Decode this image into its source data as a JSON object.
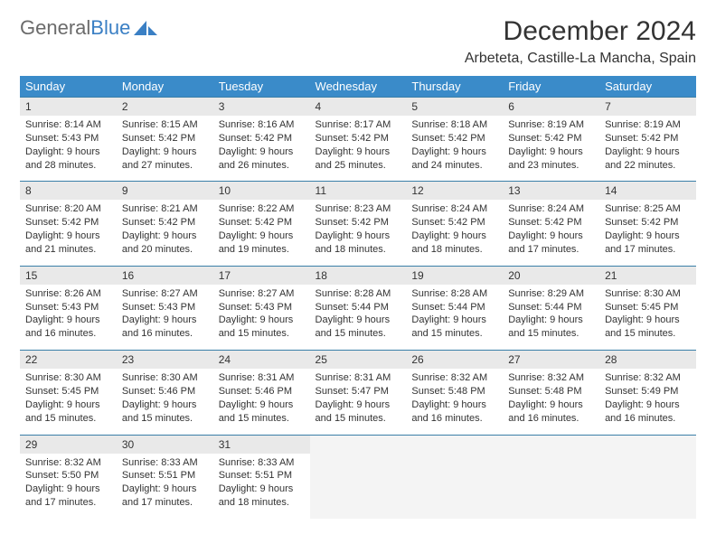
{
  "brand": {
    "part1": "General",
    "part2": "Blue"
  },
  "title": "December 2024",
  "location": "Arbeteta, Castille-La Mancha, Spain",
  "colors": {
    "header_bg": "#3a8bc9",
    "header_text": "#ffffff",
    "daynum_bg": "#e9e9e9",
    "border": "#3a7fa8",
    "brand_gray": "#6b6b6b",
    "brand_blue": "#3a7fc4"
  },
  "dow": [
    "Sunday",
    "Monday",
    "Tuesday",
    "Wednesday",
    "Thursday",
    "Friday",
    "Saturday"
  ],
  "weeks": [
    [
      {
        "n": "1",
        "sr": "8:14 AM",
        "ss": "5:43 PM",
        "dl": "9 hours and 28 minutes."
      },
      {
        "n": "2",
        "sr": "8:15 AM",
        "ss": "5:42 PM",
        "dl": "9 hours and 27 minutes."
      },
      {
        "n": "3",
        "sr": "8:16 AM",
        "ss": "5:42 PM",
        "dl": "9 hours and 26 minutes."
      },
      {
        "n": "4",
        "sr": "8:17 AM",
        "ss": "5:42 PM",
        "dl": "9 hours and 25 minutes."
      },
      {
        "n": "5",
        "sr": "8:18 AM",
        "ss": "5:42 PM",
        "dl": "9 hours and 24 minutes."
      },
      {
        "n": "6",
        "sr": "8:19 AM",
        "ss": "5:42 PM",
        "dl": "9 hours and 23 minutes."
      },
      {
        "n": "7",
        "sr": "8:19 AM",
        "ss": "5:42 PM",
        "dl": "9 hours and 22 minutes."
      }
    ],
    [
      {
        "n": "8",
        "sr": "8:20 AM",
        "ss": "5:42 PM",
        "dl": "9 hours and 21 minutes."
      },
      {
        "n": "9",
        "sr": "8:21 AM",
        "ss": "5:42 PM",
        "dl": "9 hours and 20 minutes."
      },
      {
        "n": "10",
        "sr": "8:22 AM",
        "ss": "5:42 PM",
        "dl": "9 hours and 19 minutes."
      },
      {
        "n": "11",
        "sr": "8:23 AM",
        "ss": "5:42 PM",
        "dl": "9 hours and 18 minutes."
      },
      {
        "n": "12",
        "sr": "8:24 AM",
        "ss": "5:42 PM",
        "dl": "9 hours and 18 minutes."
      },
      {
        "n": "13",
        "sr": "8:24 AM",
        "ss": "5:42 PM",
        "dl": "9 hours and 17 minutes."
      },
      {
        "n": "14",
        "sr": "8:25 AM",
        "ss": "5:42 PM",
        "dl": "9 hours and 17 minutes."
      }
    ],
    [
      {
        "n": "15",
        "sr": "8:26 AM",
        "ss": "5:43 PM",
        "dl": "9 hours and 16 minutes."
      },
      {
        "n": "16",
        "sr": "8:27 AM",
        "ss": "5:43 PM",
        "dl": "9 hours and 16 minutes."
      },
      {
        "n": "17",
        "sr": "8:27 AM",
        "ss": "5:43 PM",
        "dl": "9 hours and 15 minutes."
      },
      {
        "n": "18",
        "sr": "8:28 AM",
        "ss": "5:44 PM",
        "dl": "9 hours and 15 minutes."
      },
      {
        "n": "19",
        "sr": "8:28 AM",
        "ss": "5:44 PM",
        "dl": "9 hours and 15 minutes."
      },
      {
        "n": "20",
        "sr": "8:29 AM",
        "ss": "5:44 PM",
        "dl": "9 hours and 15 minutes."
      },
      {
        "n": "21",
        "sr": "8:30 AM",
        "ss": "5:45 PM",
        "dl": "9 hours and 15 minutes."
      }
    ],
    [
      {
        "n": "22",
        "sr": "8:30 AM",
        "ss": "5:45 PM",
        "dl": "9 hours and 15 minutes."
      },
      {
        "n": "23",
        "sr": "8:30 AM",
        "ss": "5:46 PM",
        "dl": "9 hours and 15 minutes."
      },
      {
        "n": "24",
        "sr": "8:31 AM",
        "ss": "5:46 PM",
        "dl": "9 hours and 15 minutes."
      },
      {
        "n": "25",
        "sr": "8:31 AM",
        "ss": "5:47 PM",
        "dl": "9 hours and 15 minutes."
      },
      {
        "n": "26",
        "sr": "8:32 AM",
        "ss": "5:48 PM",
        "dl": "9 hours and 16 minutes."
      },
      {
        "n": "27",
        "sr": "8:32 AM",
        "ss": "5:48 PM",
        "dl": "9 hours and 16 minutes."
      },
      {
        "n": "28",
        "sr": "8:32 AM",
        "ss": "5:49 PM",
        "dl": "9 hours and 16 minutes."
      }
    ],
    [
      {
        "n": "29",
        "sr": "8:32 AM",
        "ss": "5:50 PM",
        "dl": "9 hours and 17 minutes."
      },
      {
        "n": "30",
        "sr": "8:33 AM",
        "ss": "5:51 PM",
        "dl": "9 hours and 17 minutes."
      },
      {
        "n": "31",
        "sr": "8:33 AM",
        "ss": "5:51 PM",
        "dl": "9 hours and 18 minutes."
      },
      null,
      null,
      null,
      null
    ]
  ],
  "labels": {
    "sunrise": "Sunrise:",
    "sunset": "Sunset:",
    "daylight": "Daylight:"
  }
}
